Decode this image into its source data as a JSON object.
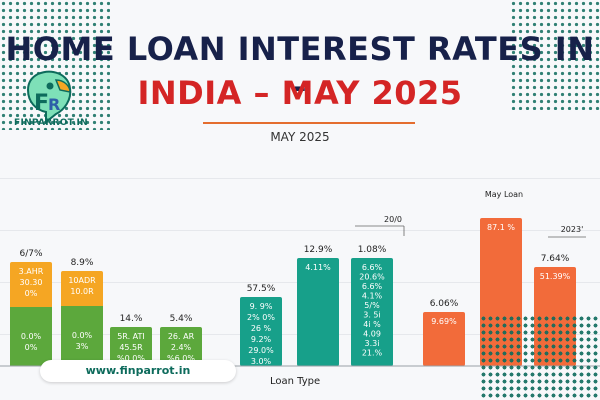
{
  "header": {
    "title_line1": "HOME LOAN INTEREST RATES IN -",
    "title_line2": "INDIA – MAY 2025",
    "subtitle": "MAY 2025",
    "logo_text": "FINPARROT.IN"
  },
  "footer": {
    "url": "www.finparrot.in",
    "x_axis_label": "Loan Type"
  },
  "colors": {
    "orange": "#f5a623",
    "green": "#5ca83c",
    "teal": "#17a08a",
    "coral": "#f26b3a",
    "navy": "#17214a",
    "red": "#d42525"
  },
  "annotations": [
    {
      "id": "may-loan",
      "text": "May Loan"
    },
    {
      "id": "note-2020",
      "text": "20/0"
    },
    {
      "id": "note-2023",
      "text": "2023'"
    }
  ],
  "chart_data": {
    "type": "bar",
    "title": "HOME LOAN INTEREST RATES IN - INDIA – MAY 2025",
    "subtitle": "MAY 2025",
    "xlabel": "Loan Type",
    "ylabel": "",
    "grid": true,
    "bars": [
      {
        "color": "orange",
        "value": 10.4,
        "top_label": "6/7%",
        "labels": [
          "3.AHR",
          "30.30",
          "0%"
        ],
        "lower_color": "green",
        "lower_value": 5.9,
        "lower_labels": [
          "0.0%",
          "0%"
        ]
      },
      {
        "color": "orange",
        "value": 9.5,
        "top_label": "8.9%",
        "labels": [
          "10ADR",
          "10.0R"
        ],
        "lower_color": "green",
        "lower_value": 6.0,
        "lower_labels": [
          "0.0%",
          "3%"
        ]
      },
      {
        "color": "green",
        "value": 3.9,
        "top_label": "14.%",
        "labels": [
          "5R. ATI",
          "45.5R",
          "%0 0%"
        ]
      },
      {
        "color": "green",
        "value": 3.9,
        "top_label": "5.4%",
        "labels": [
          "26. AR",
          "2.4%",
          "%6 0%"
        ]
      },
      {
        "color": "teal",
        "value": 6.9,
        "top_label": "57.5%",
        "labels": [
          "9. 9%",
          "2% 0%",
          "26 %",
          "9.2%",
          "29.0%",
          "3.0%"
        ]
      },
      {
        "color": "teal",
        "value": 10.8,
        "top_label": "12.9%",
        "labels": [
          "4.11%"
        ]
      },
      {
        "color": "teal",
        "value": 10.8,
        "top_label": "1.08%",
        "labels": [
          "6.6%",
          "20.6%",
          "6.6%",
          "4.1%",
          "5/%",
          "3. 5i",
          "4i %",
          "4.09",
          "3.3i",
          "21.%"
        ]
      },
      {
        "color": "coral",
        "value": 5.4,
        "top_label": "6.06%",
        "labels": [
          "9.69%"
        ]
      },
      {
        "color": "coral",
        "value": 14.8,
        "top_label": "",
        "labels": [
          "87.1 %"
        ]
      },
      {
        "color": "coral",
        "value": 9.9,
        "top_label": "7.64%",
        "labels": [
          "51.39%"
        ]
      }
    ]
  }
}
